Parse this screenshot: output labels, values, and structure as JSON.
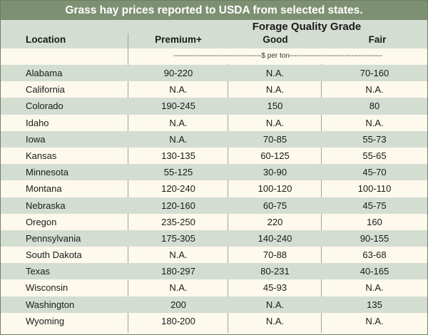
{
  "title": "Grass hay prices reported to USDA from selected states.",
  "header": {
    "group": "Forage Quality Grade",
    "location": "Location",
    "columns": [
      "Premium+",
      "Good",
      "Fair"
    ],
    "units": "-------------------------------------$ per ton---------------------------------------"
  },
  "rows": [
    {
      "location": "Alabama",
      "premium": "90-220",
      "good": "N.A.",
      "fair": "70-160"
    },
    {
      "location": "California",
      "premium": "N.A.",
      "good": "N.A.",
      "fair": "N.A."
    },
    {
      "location": "Colorado",
      "premium": "190-245",
      "good": "150",
      "fair": "80"
    },
    {
      "location": "Idaho",
      "premium": "N.A.",
      "good": "N.A.",
      "fair": "N.A."
    },
    {
      "location": "Iowa",
      "premium": "N.A.",
      "good": "70-85",
      "fair": "55-73"
    },
    {
      "location": "Kansas",
      "premium": "130-135",
      "good": "60-125",
      "fair": "55-65"
    },
    {
      "location": "Minnesota",
      "premium": "55-125",
      "good": "30-90",
      "fair": "45-70"
    },
    {
      "location": "Montana",
      "premium": "120-240",
      "good": "100-120",
      "fair": "100-110"
    },
    {
      "location": "Nebraska",
      "premium": "120-160",
      "good": "60-75",
      "fair": "45-75"
    },
    {
      "location": "Oregon",
      "premium": "235-250",
      "good": "220",
      "fair": "160"
    },
    {
      "location": "Pennsylvania",
      "premium": "175-305",
      "good": "140-240",
      "fair": "90-155"
    },
    {
      "location": "South Dakota",
      "premium": "N.A.",
      "good": "70-88",
      "fair": "63-68"
    },
    {
      "location": "Texas",
      "premium": "180-297",
      "good": "80-231",
      "fair": "40-165"
    },
    {
      "location": "Wisconsin",
      "premium": "N.A.",
      "good": "45-93",
      "fair": "N.A."
    },
    {
      "location": "Washington",
      "premium": "200",
      "good": "N.A.",
      "fair": "135"
    },
    {
      "location": "Wyoming",
      "premium": "180-200",
      "good": "N.A.",
      "fair": "N.A."
    }
  ],
  "colors": {
    "title_bar": "#7e9072",
    "band": "#d4ddd1",
    "cream": "#fdf9ec",
    "rule": "#9aa693"
  }
}
